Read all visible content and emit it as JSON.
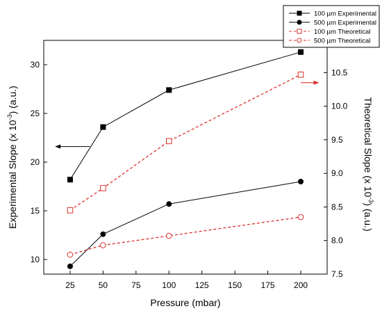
{
  "chart_data": {
    "type": "line",
    "x": [
      25,
      50,
      100,
      200
    ],
    "xlabel": "Pressure (mbar)",
    "xlim": [
      5,
      220
    ],
    "xticks": [
      "25",
      "50",
      "75",
      "100",
      "125",
      "150",
      "175",
      "200"
    ],
    "ylabel_prefix": "Experimental Slope (x 10",
    "ylabel_exp": "-3",
    "ylabel_suffix": ") (a.u.)",
    "ylim": [
      8.5,
      32.5
    ],
    "yticks": [
      "10",
      "15",
      "20",
      "25",
      "30"
    ],
    "y2label_prefix": "Theoretical Slope (x 10",
    "y2label_exp": "-3",
    "y2label_suffix": ") (a.u.)",
    "y2lim": [
      7.5,
      10.98
    ],
    "y2ticks": [
      "7.5",
      "8.0",
      "8.5",
      "9.0",
      "9.5",
      "10.0",
      "10.5"
    ],
    "series": [
      {
        "name": "100 µm Experimental",
        "axis": "left",
        "values": [
          18.2,
          23.6,
          27.4,
          31.3
        ],
        "color": "#000000",
        "dash": false,
        "marker": "square",
        "filled": true
      },
      {
        "name": "500 µm Experimental",
        "axis": "left",
        "values": [
          9.3,
          12.6,
          15.7,
          18.0
        ],
        "color": "#000000",
        "dash": false,
        "marker": "circle",
        "filled": true
      },
      {
        "name": "100 µm Theoretical",
        "axis": "right",
        "values": [
          8.45,
          8.78,
          9.48,
          10.47
        ],
        "color": "#d9312b",
        "dash": true,
        "marker": "square",
        "filled": false
      },
      {
        "name": "500 µm Theoretical",
        "axis": "right",
        "values": [
          7.79,
          7.93,
          8.07,
          8.35
        ],
        "color": "#d9312b",
        "dash": true,
        "marker": "circle",
        "filled": false
      }
    ],
    "legend_position": "top-right",
    "annotations": [
      {
        "type": "arrow",
        "axis": "left",
        "direction": "left",
        "color": "#000000"
      },
      {
        "type": "arrow",
        "axis": "right",
        "direction": "right",
        "color": "#d9312b"
      }
    ]
  }
}
